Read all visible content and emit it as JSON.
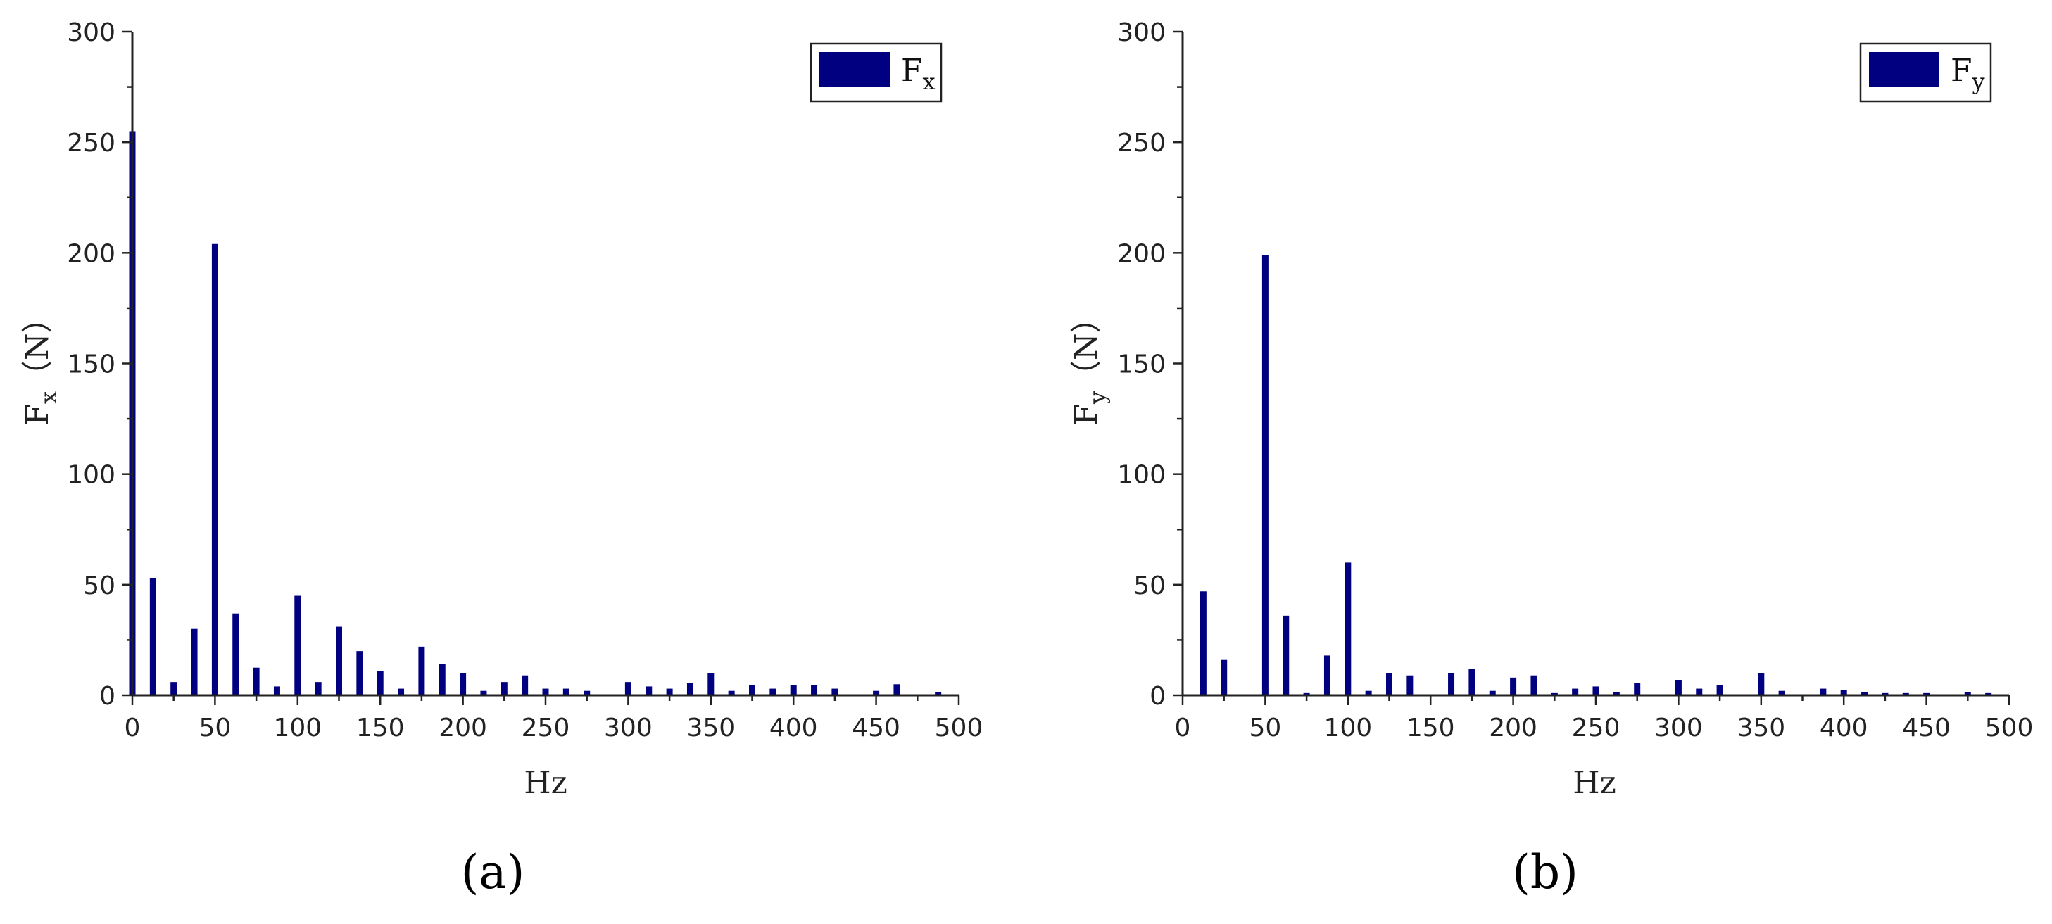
{
  "panels": [
    {
      "label": "(a)",
      "legend": {
        "symbol": "F",
        "subscript": "x"
      },
      "ylabel": {
        "symbol": "F",
        "subscript": "x",
        "unit": "（N）"
      },
      "xlabel": "Hz"
    },
    {
      "label": "(b)",
      "legend": {
        "symbol": "F",
        "subscript": "y"
      },
      "ylabel": {
        "symbol": "F",
        "subscript": "y",
        "unit": "（N）"
      },
      "xlabel": "Hz"
    }
  ],
  "chart_data": [
    {
      "type": "bar",
      "title": "",
      "xlabel": "Hz",
      "ylabel": "Fx（N）",
      "xlim": [
        0,
        500
      ],
      "ylim": [
        0,
        300
      ],
      "xticks": [
        0,
        50,
        100,
        150,
        200,
        250,
        300,
        350,
        400,
        450,
        500
      ],
      "yticks": [
        0,
        50,
        100,
        150,
        200,
        250,
        300
      ],
      "legend": "top-right",
      "bar_color": "#000080",
      "series": [
        {
          "name": "Fx",
          "x": [
            0,
            12.5,
            25,
            37.5,
            50,
            62.5,
            75,
            87.5,
            100,
            112.5,
            125,
            137.5,
            150,
            162.5,
            175,
            187.5,
            200,
            212.5,
            225,
            237.5,
            250,
            262.5,
            275,
            300,
            312.5,
            325,
            337.5,
            350,
            362.5,
            375,
            387.5,
            400,
            412.5,
            425,
            450,
            462.5,
            487.5
          ],
          "values": [
            255,
            53,
            6,
            30,
            204,
            37,
            12.5,
            4,
            45,
            6,
            31,
            20,
            11,
            3,
            22,
            14,
            10,
            2,
            6,
            9,
            3,
            3,
            2,
            6,
            4,
            3,
            5.5,
            10,
            2,
            4.5,
            3,
            4.5,
            4.5,
            3,
            2,
            5,
            1.5
          ]
        }
      ]
    },
    {
      "type": "bar",
      "title": "",
      "xlabel": "Hz",
      "ylabel": "Fy（N）",
      "xlim": [
        0,
        500
      ],
      "ylim": [
        0,
        300
      ],
      "xticks": [
        0,
        50,
        100,
        150,
        200,
        250,
        300,
        350,
        400,
        450,
        500
      ],
      "yticks": [
        0,
        50,
        100,
        150,
        200,
        250,
        300
      ],
      "legend": "top-right",
      "bar_color": "#000080",
      "series": [
        {
          "name": "Fy",
          "x": [
            12.5,
            25,
            50,
            62.5,
            75,
            87.5,
            100,
            112.5,
            125,
            137.5,
            162.5,
            175,
            187.5,
            200,
            212.5,
            225,
            237.5,
            250,
            262.5,
            275,
            300,
            312.5,
            325,
            350,
            362.5,
            387.5,
            400,
            412.5,
            425,
            437.5,
            450,
            475,
            487.5
          ],
          "values": [
            47,
            16,
            199,
            36,
            1,
            18,
            60,
            2,
            10,
            9,
            10,
            12,
            2,
            8,
            9,
            1,
            3,
            4,
            1.5,
            5.5,
            7,
            3,
            4.5,
            10,
            2,
            3,
            2.5,
            1.5,
            1,
            1,
            1,
            1.5,
            1
          ]
        }
      ]
    }
  ]
}
